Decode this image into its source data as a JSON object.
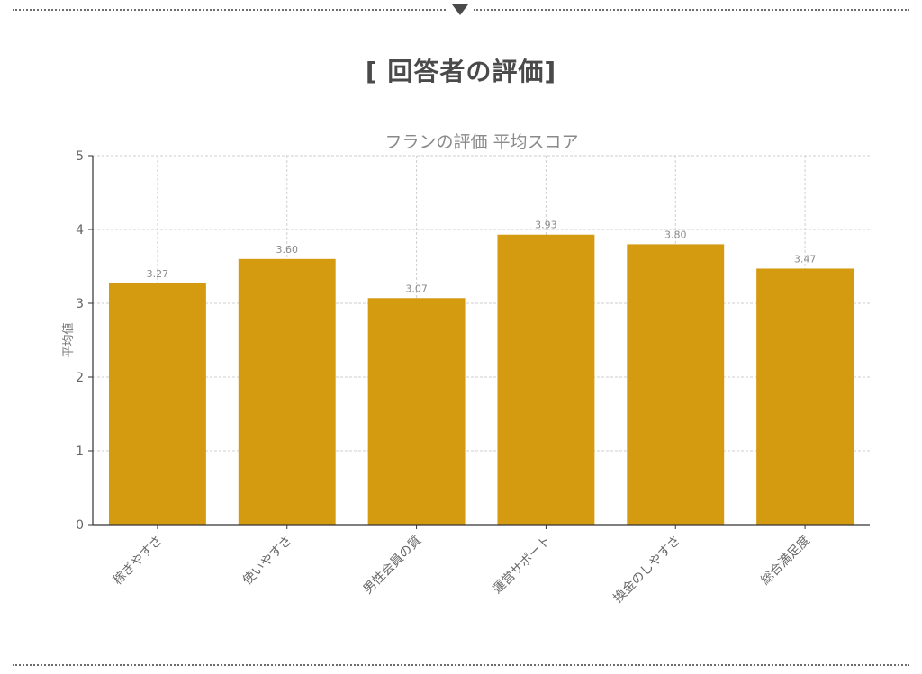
{
  "page": {
    "heading": "[ 回答者の評価]"
  },
  "chart_data": {
    "type": "bar",
    "title": "フランの評価 平均スコア",
    "xlabel": "",
    "ylabel": "平均値",
    "categories": [
      "稼ぎやすさ",
      "使いやすさ",
      "男性会員の質",
      "運営サポート",
      "換金のしやすさ",
      "総合満足度"
    ],
    "values": [
      3.27,
      3.6,
      3.07,
      3.93,
      3.8,
      3.47
    ],
    "value_labels": [
      "3.27",
      "3.60",
      "3.07",
      "3.93",
      "3.80",
      "3.47"
    ],
    "ylim": [
      0,
      5
    ],
    "yticks": [
      0,
      1,
      2,
      3,
      4,
      5
    ],
    "grid": true,
    "bar_color": "#d49a10"
  }
}
